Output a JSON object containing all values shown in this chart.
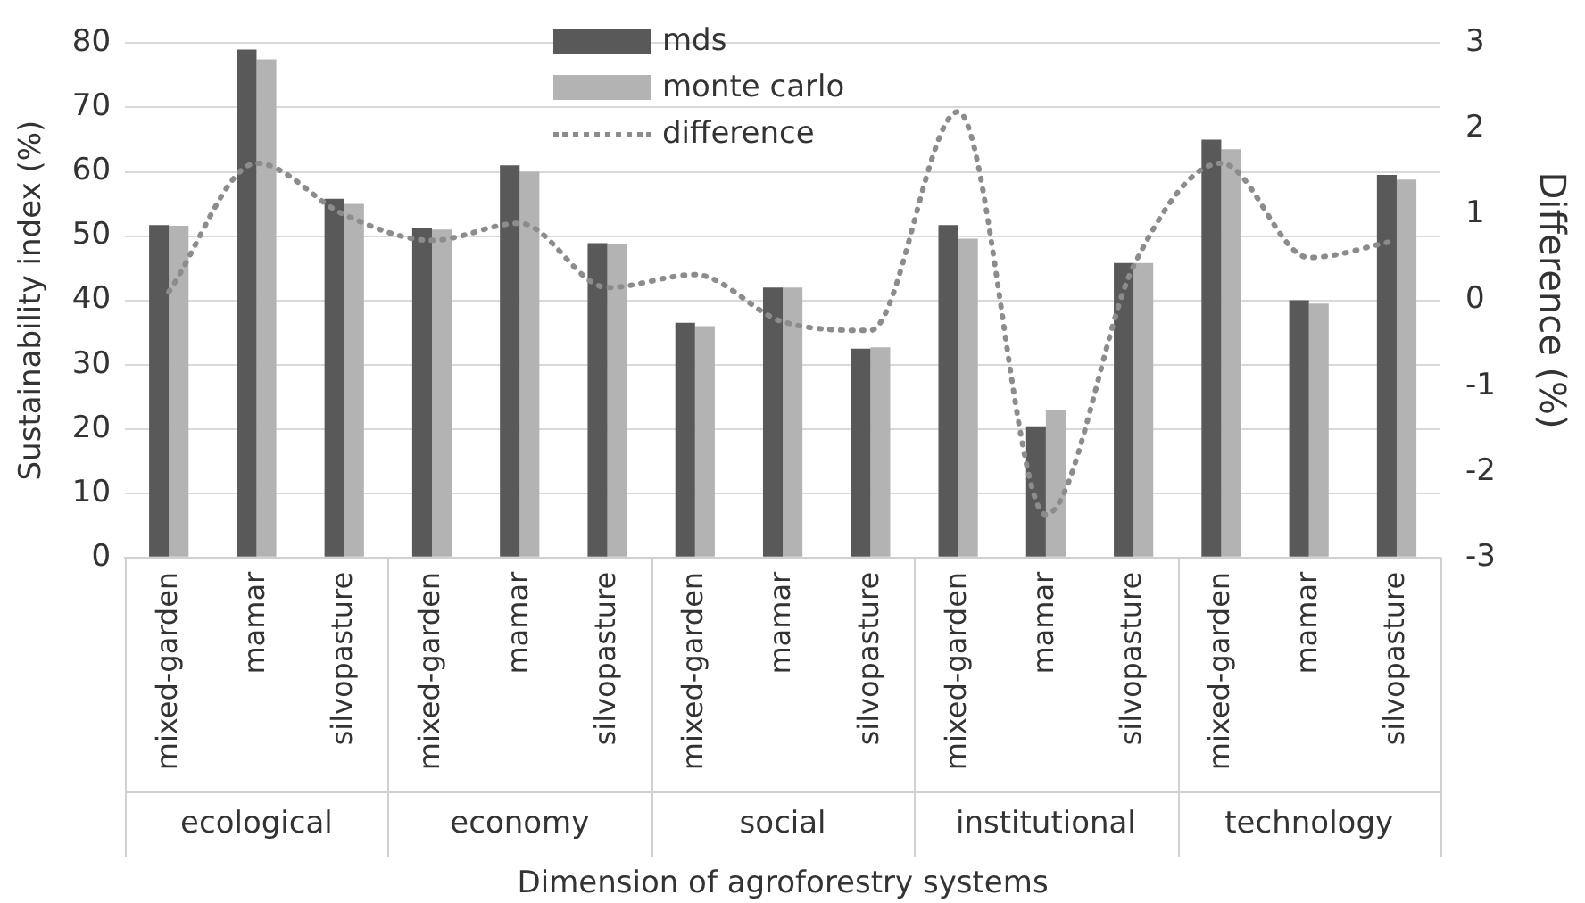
{
  "chart_data": {
    "type": "bar",
    "xlabel": "Dimension of agroforestry systems",
    "ylabel": "Sustainability index (%)",
    "y2label": "Difference (%)",
    "categories": [
      "mixed-garden",
      "mamar",
      "silvopasture",
      "mixed-garden",
      "mamar",
      "silvopasture",
      "mixed-garden",
      "mamar",
      "silvopasture",
      "mixed-garden",
      "mamar",
      "silvopasture",
      "mixed-garden",
      "mamar",
      "silvopasture"
    ],
    "annotations": [
      "ecological",
      "economy",
      "social",
      "institutional",
      "technology"
    ],
    "series": [
      {
        "name": "mds",
        "color": "#595959",
        "values": [
          51.7,
          79,
          55.8,
          51.3,
          61,
          48.9,
          36.5,
          42,
          32.5,
          51.7,
          20.4,
          45.8,
          65,
          40,
          59.5
        ]
      },
      {
        "name": "monte carlo",
        "color": "#b3b3b3",
        "values": [
          51.6,
          77.5,
          55,
          51,
          60,
          48.7,
          36,
          42,
          32.7,
          49.6,
          23,
          45.8,
          63.5,
          39.5,
          58.8
        ]
      },
      {
        "name": "difference",
        "type": "line",
        "axis": "y2",
        "color": "#8c8c8c",
        "line_style": "dotted",
        "values": [
          0.1,
          1.6,
          1.0,
          0.7,
          0.9,
          0.15,
          0.3,
          -0.25,
          -0.35,
          2.2,
          -2.5,
          0.4,
          1.6,
          0.5,
          0.7
        ]
      }
    ],
    "ylim": [
      0,
      80
    ],
    "yticks": [
      0,
      10,
      20,
      30,
      40,
      50,
      60,
      70,
      80
    ],
    "y2lim": [
      -3,
      3
    ],
    "y2ticks": [
      -3,
      -2,
      -1,
      0,
      1,
      2,
      3
    ],
    "grid": "y",
    "legend": "top",
    "marker": "none"
  }
}
